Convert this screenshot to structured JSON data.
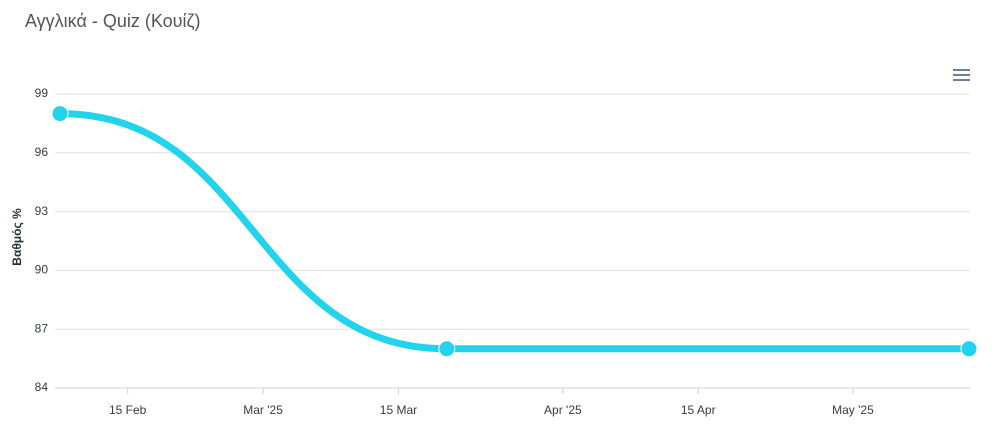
{
  "chart_data": {
    "type": "line",
    "title": "Αγγλικά - Quiz (Κουίζ)",
    "y_label": "Βαθμός %",
    "x": [
      "2025-02-08",
      "2025-03-20",
      "2025-05-13"
    ],
    "series": [
      {
        "color": "#22d3ee",
        "values": [
          98,
          86,
          86
        ]
      }
    ],
    "xlim": [
      "2025-02-08",
      "2025-05-13"
    ],
    "xticks": [
      {
        "value": "2025-02-15",
        "label": "15 Feb"
      },
      {
        "value": "2025-03-01",
        "label": "Mar '25"
      },
      {
        "value": "2025-03-15",
        "label": "15 Mar"
      },
      {
        "value": "2025-04-01",
        "label": "Apr '25"
      },
      {
        "value": "2025-04-15",
        "label": "15 Apr"
      },
      {
        "value": "2025-05-01",
        "label": "May '25"
      }
    ],
    "ylim": [
      84,
      99
    ],
    "yticks": [
      84,
      87,
      90,
      93,
      96,
      99
    ],
    "grid": true
  }
}
